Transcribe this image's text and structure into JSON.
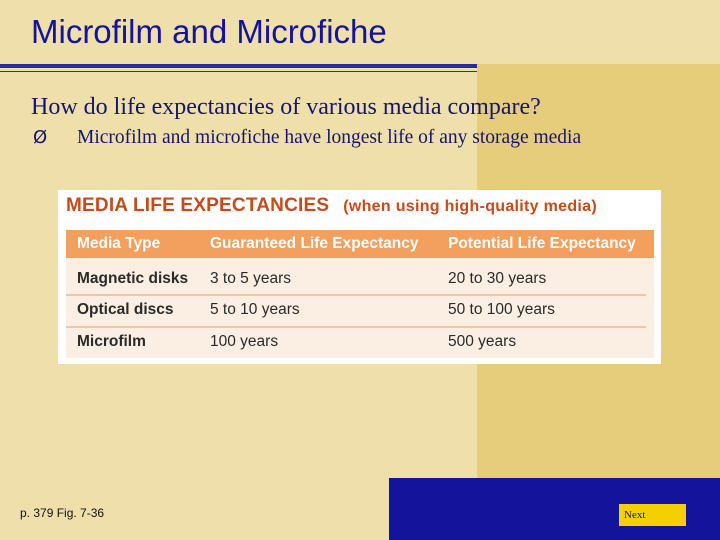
{
  "slide": {
    "title": "Microfilm and Microfiche",
    "question": "How do life expectancies of various media compare?",
    "bullet": {
      "marker": "Ø",
      "text": "Microfilm and microfiche have longest life of any storage media"
    },
    "figure": {
      "title": "MEDIA LIFE EXPECTANCIES",
      "subtitle": "(when using high-quality media)",
      "table": {
        "headers": [
          "Media Type",
          "Guaranteed Life Expectancy",
          "Potential Life Expectancy"
        ],
        "rows": [
          [
            "Magnetic disks",
            "3 to 5 years",
            "20 to 30 years"
          ],
          [
            "Optical discs",
            "5 to 10 years",
            "50 to 100 years"
          ],
          [
            "Microfilm",
            "100 years",
            "500 years"
          ]
        ]
      }
    },
    "footer": {
      "reference": "p. 379 Fig. 7-36",
      "next_label": "Next"
    }
  },
  "colors": {
    "background": "#efdfaa",
    "accent_panel": "#e6cd7c",
    "title_blue": "#13139c",
    "figure_title_orange": "#c84a18",
    "table_header": "#f3a05e",
    "next_button": "#f5d000"
  }
}
